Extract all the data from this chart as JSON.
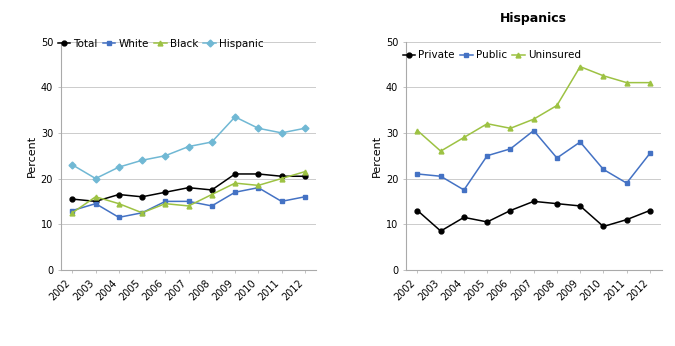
{
  "years": [
    2002,
    2003,
    2004,
    2005,
    2006,
    2007,
    2008,
    2009,
    2010,
    2011,
    2012
  ],
  "left": {
    "Total": [
      15.5,
      15.0,
      16.5,
      16.0,
      17.0,
      18.0,
      17.5,
      21.0,
      21.0,
      20.5,
      20.5
    ],
    "White": [
      13.0,
      14.5,
      11.5,
      12.5,
      15.0,
      15.0,
      14.0,
      17.0,
      18.0,
      15.0,
      16.0
    ],
    "Black": [
      12.5,
      16.0,
      14.5,
      12.5,
      14.5,
      14.0,
      16.5,
      19.0,
      18.5,
      20.0,
      21.5
    ],
    "Hispanic": [
      23.0,
      20.0,
      22.5,
      24.0,
      25.0,
      27.0,
      28.0,
      33.5,
      31.0,
      30.0,
      31.0
    ]
  },
  "left_order": [
    "Total",
    "White",
    "Black",
    "Hispanic"
  ],
  "left_colors": {
    "Total": "#000000",
    "White": "#4472c4",
    "Black": "#9dc243",
    "Hispanic": "#70b8d4"
  },
  "left_markers": {
    "Total": "o",
    "White": "s",
    "Black": "^",
    "Hispanic": "D"
  },
  "right": {
    "Private": [
      13.0,
      8.5,
      11.5,
      10.5,
      13.0,
      15.0,
      14.5,
      14.0,
      9.5,
      11.0,
      13.0
    ],
    "Public": [
      21.0,
      20.5,
      17.5,
      25.0,
      26.5,
      30.5,
      24.5,
      28.0,
      22.0,
      19.0,
      25.5
    ],
    "Uninsured": [
      30.5,
      26.0,
      29.0,
      32.0,
      31.0,
      33.0,
      36.0,
      44.5,
      42.5,
      41.0,
      41.0
    ]
  },
  "right_order": [
    "Private",
    "Public",
    "Uninsured"
  ],
  "right_colors": {
    "Private": "#000000",
    "Public": "#4472c4",
    "Uninsured": "#9dc243"
  },
  "right_markers": {
    "Private": "o",
    "Public": "s",
    "Uninsured": "^"
  },
  "right_title": "Hispanics",
  "ylabel": "Percent",
  "ylim": [
    0,
    50
  ],
  "yticks": [
    0,
    10,
    20,
    30,
    40,
    50
  ],
  "grid_color": "#cccccc",
  "legend_fontsize": 7.5,
  "tick_fontsize": 7,
  "title_fontsize": 9,
  "axis_label_fontsize": 8
}
